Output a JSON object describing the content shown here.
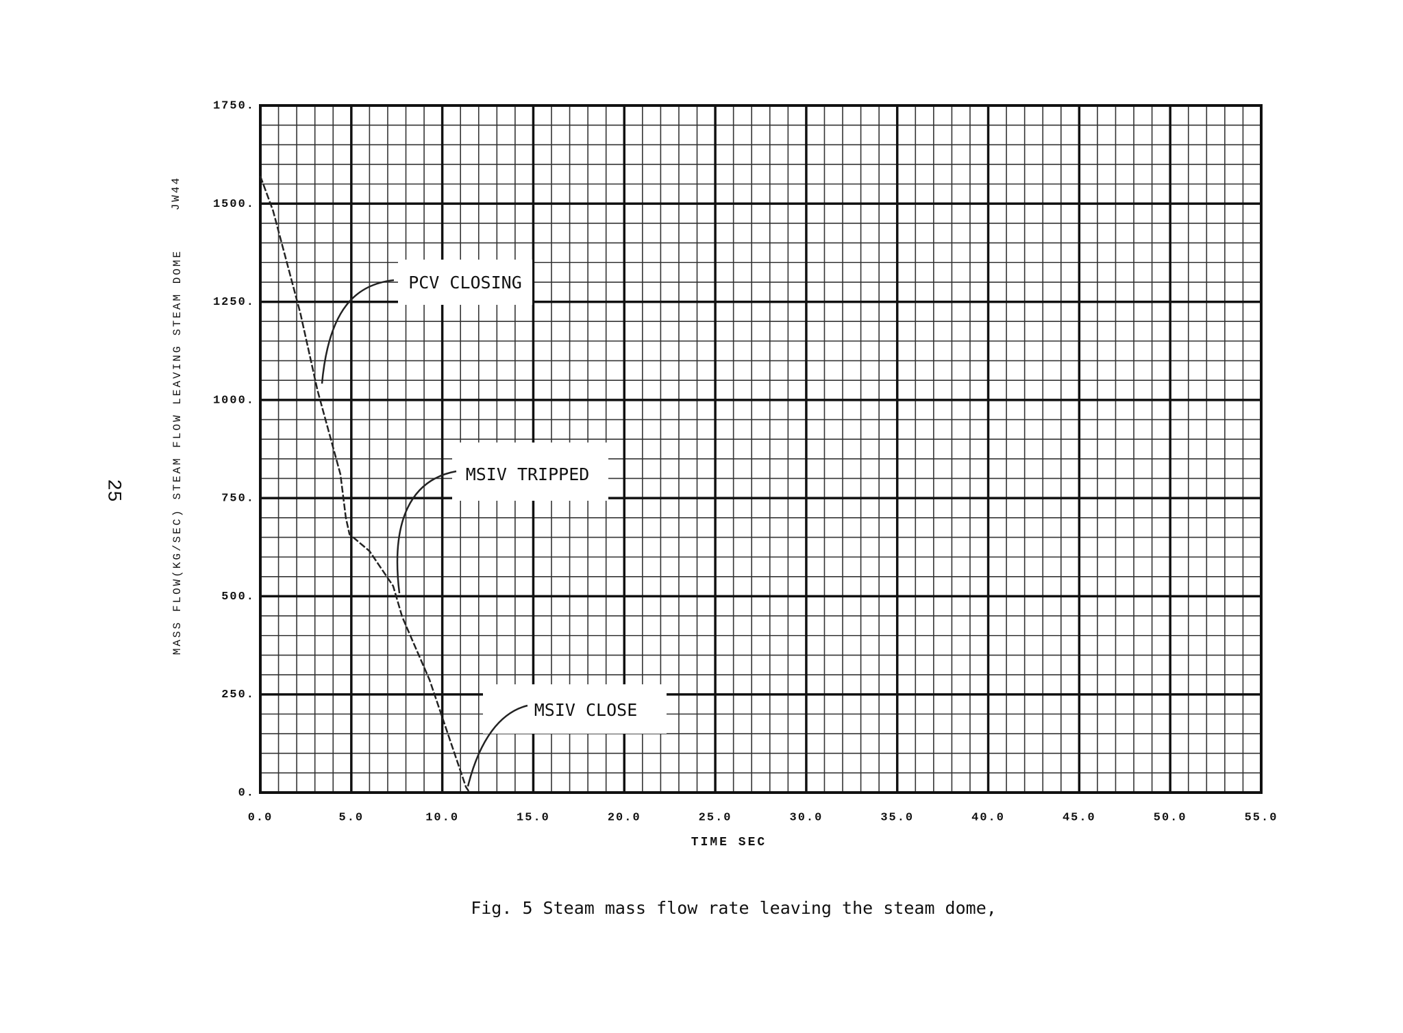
{
  "page_number": "25",
  "chart_data": {
    "type": "line",
    "code": "JW44",
    "xlabel": "TIME  SEC",
    "ylabel": "MASS FLOW(KG/SEC) STEAM FLOW LEAVING STEAM DOME",
    "caption": "Fig. 5  Steam mass flow rate leaving the steam dome,",
    "annotations": [
      "PCV CLOSING",
      "MSIV TRIPPED",
      "MSIV CLOSE"
    ],
    "x": [
      0,
      0.7,
      2.2,
      3.15,
      4.4,
      4.7,
      4.9,
      6.0,
      7.3,
      7.8,
      9.3,
      11.3,
      11.5
    ],
    "values": [
      1570,
      1482,
      1221,
      1023,
      811,
      700,
      658,
      615,
      526,
      447,
      287,
      14,
      0
    ],
    "color": "#222222",
    "xlim": [
      0,
      55
    ],
    "ylim": [
      0,
      1750
    ],
    "xticks": [
      {
        "value": 0,
        "label": "0.0"
      },
      {
        "value": 5,
        "label": "5.0"
      },
      {
        "value": 10,
        "label": "10.0"
      },
      {
        "value": 15,
        "label": "15.0"
      },
      {
        "value": 20,
        "label": "20.0"
      },
      {
        "value": 25,
        "label": "25.0"
      },
      {
        "value": 30,
        "label": "30.0"
      },
      {
        "value": 35,
        "label": "35.0"
      },
      {
        "value": 40,
        "label": "40.0"
      },
      {
        "value": 45,
        "label": "45.0"
      },
      {
        "value": 50,
        "label": "50.0"
      },
      {
        "value": 55,
        "label": "55.0"
      }
    ],
    "yticks": [
      {
        "value": 0,
        "label": "0."
      },
      {
        "value": 250,
        "label": "250."
      },
      {
        "value": 500,
        "label": "500."
      },
      {
        "value": 750,
        "label": "750."
      },
      {
        "value": 1000,
        "label": "1000."
      },
      {
        "value": 1250,
        "label": "1250."
      },
      {
        "value": 1500,
        "label": "1500."
      },
      {
        "value": 1750,
        "label": "1750."
      }
    ],
    "grid": true
  }
}
